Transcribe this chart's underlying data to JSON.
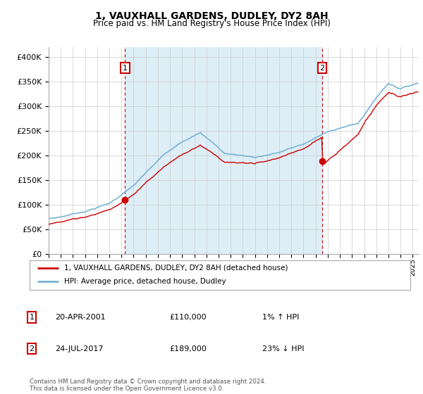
{
  "title": "1, VAUXHALL GARDENS, DUDLEY, DY2 8AH",
  "subtitle": "Price paid vs. HM Land Registry's House Price Index (HPI)",
  "legend_line1": "1, VAUXHALL GARDENS, DUDLEY, DY2 8AH (detached house)",
  "legend_line2": "HPI: Average price, detached house, Dudley",
  "annotation1_date": "20-APR-2001",
  "annotation1_price": "£110,000",
  "annotation1_hpi": "1% ↑ HPI",
  "annotation2_date": "24-JUL-2017",
  "annotation2_price": "£189,000",
  "annotation2_hpi": "23% ↓ HPI",
  "footer": "Contains HM Land Registry data © Crown copyright and database right 2024.\nThis data is licensed under the Open Government Licence v3.0.",
  "sale1_year": 2001.3,
  "sale1_price": 110000,
  "sale2_year": 2017.55,
  "sale2_price": 189000,
  "ylim_min": 0,
  "ylim_max": 420000,
  "xlim_min": 1995,
  "xlim_max": 2025.5,
  "hpi_color": "#7ab3d4",
  "price_color": "#cc0000",
  "marker_color": "#cc0000",
  "annotation_box_color": "#cc0000",
  "bg_fill_color": "#ddeef7",
  "background_color": "#ffffff",
  "grid_color": "#cccccc"
}
